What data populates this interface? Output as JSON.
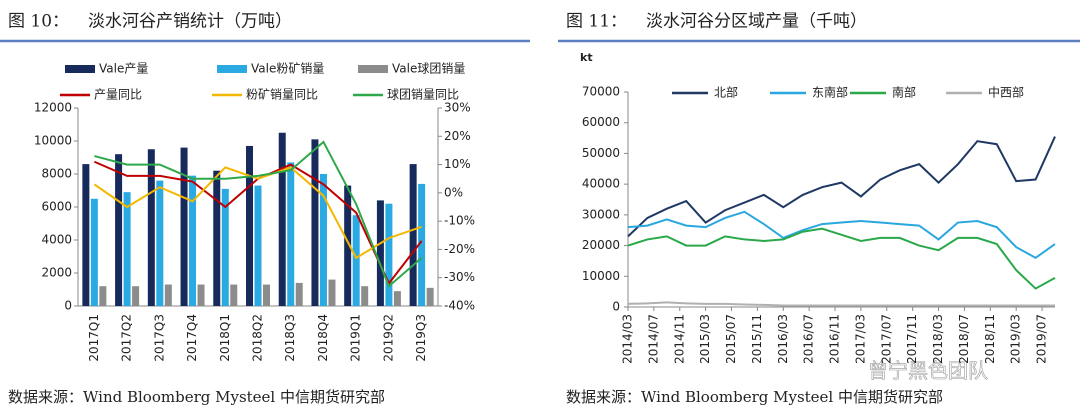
{
  "chart_data": [
    {
      "type": "bar_line",
      "figure_label": "图 10：",
      "title": "淡水河谷产销统计（万吨）",
      "source": "数据来源：Wind Bloomberg Mysteel 中信期货研究部",
      "categories": [
        "2017Q1",
        "2017Q2",
        "2017Q3",
        "2017Q4",
        "2018Q1",
        "2018Q2",
        "2018Q3",
        "2018Q4",
        "2019Q1",
        "2019Q2",
        "2019Q3"
      ],
      "series": [
        {
          "name": "Vale产量",
          "color": "#172a5c",
          "values": [
            8600,
            9200,
            9500,
            9600,
            8200,
            9700,
            10500,
            10100,
            7300,
            6400,
            8600
          ]
        },
        {
          "name": "Vale粉矿销量",
          "color": "#2aa9e3",
          "values": [
            6500,
            6900,
            7600,
            7900,
            7100,
            7300,
            8700,
            8000,
            5500,
            6200,
            7400
          ]
        },
        {
          "name": "Vale球团销量",
          "color": "#8c8c8c",
          "values": [
            1200,
            1200,
            1300,
            1300,
            1300,
            1300,
            1400,
            1600,
            1200,
            900,
            1100
          ]
        },
        {
          "name": "产量同比",
          "color": "#c00000",
          "axis": "y2",
          "values": [
            11,
            6,
            6,
            4,
            -5,
            5,
            10,
            3,
            -7,
            -32,
            -17
          ]
        },
        {
          "name": "粉矿销量同比",
          "color": "#f5b800",
          "axis": "y2",
          "values": [
            3,
            -5,
            2,
            -3,
            9,
            5,
            9,
            -1,
            -23,
            -16,
            -12
          ]
        },
        {
          "name": "球团销量同比",
          "color": "#2ea84a",
          "axis": "y2",
          "values": [
            13,
            10,
            10,
            5,
            5,
            6,
            8,
            18,
            -4,
            -33,
            -23
          ]
        }
      ],
      "ylim": [
        0,
        12000
      ],
      "yticks": [
        0,
        2000,
        4000,
        6000,
        8000,
        10000,
        12000
      ],
      "y2lim": [
        -40,
        30
      ],
      "y2ticks": [
        {
          "value": -40,
          "label": "-40%"
        },
        {
          "value": -30,
          "label": "-30%"
        },
        {
          "value": -20,
          "label": "-20%"
        },
        {
          "value": -10,
          "label": "-10%"
        },
        {
          "value": 0,
          "label": "0%"
        },
        {
          "value": 10,
          "label": "10%"
        },
        {
          "value": 20,
          "label": "20%"
        },
        {
          "value": 30,
          "label": "30%"
        }
      ],
      "grid": false
    },
    {
      "type": "line",
      "figure_label": "图 11：",
      "title": "淡水河谷分区域产量（千吨）",
      "source": "数据来源：Wind Bloomberg Mysteel 中信期货研究部",
      "y_label": "kt",
      "watermark": "曾宁黑色团队",
      "x": [
        "2014/03",
        "2014/06",
        "2014/09",
        "2014/12",
        "2015/03",
        "2015/06",
        "2015/09",
        "2015/12",
        "2016/03",
        "2016/06",
        "2016/09",
        "2016/12",
        "2017/03",
        "2017/06",
        "2017/09",
        "2017/12",
        "2018/03",
        "2018/06",
        "2018/09",
        "2018/12",
        "2019/03",
        "2019/06",
        "2019/09"
      ],
      "series": [
        {
          "name": "北部",
          "color": "#1f3864",
          "values": [
            23000,
            29000,
            32000,
            34500,
            27500,
            31500,
            34000,
            36500,
            32500,
            36500,
            39000,
            40500,
            36000,
            41500,
            44500,
            46500,
            40500,
            46500,
            54000,
            53000,
            41000,
            41500,
            55500
          ]
        },
        {
          "name": "东南部",
          "color": "#2aa7e0",
          "values": [
            26000,
            26500,
            28500,
            26500,
            26000,
            29000,
            31000,
            27000,
            22500,
            25000,
            27000,
            27500,
            28000,
            27500,
            27000,
            26500,
            22000,
            27500,
            28000,
            26000,
            19500,
            16000,
            20500
          ]
        },
        {
          "name": "南部",
          "color": "#2aa84a",
          "values": [
            20000,
            22000,
            23000,
            20000,
            20000,
            23000,
            22000,
            21500,
            22000,
            24500,
            25500,
            23500,
            21500,
            22500,
            22500,
            20000,
            18500,
            22500,
            22500,
            20500,
            12000,
            6000,
            9500
          ]
        },
        {
          "name": "中西部",
          "color": "#b0b0b0",
          "values": [
            1000,
            1200,
            1500,
            1200,
            1000,
            1000,
            800,
            700,
            500,
            500,
            500,
            500,
            500,
            500,
            500,
            500,
            500,
            500,
            500,
            500,
            500,
            500,
            500
          ]
        }
      ],
      "xlim": [
        "2014/03",
        "2019/09"
      ],
      "xticks": [
        "2014/03",
        "2014/07",
        "2014/11",
        "2015/03",
        "2015/07",
        "2015/11",
        "2016/03",
        "2016/07",
        "2016/11",
        "2017/03",
        "2017/07",
        "2017/11",
        "2018/03",
        "2018/07",
        "2018/11",
        "2019/03",
        "2019/07"
      ],
      "ylim": [
        0,
        70000
      ],
      "yticks": [
        0,
        10000,
        20000,
        30000,
        40000,
        50000,
        60000,
        70000
      ],
      "grid": false
    }
  ]
}
